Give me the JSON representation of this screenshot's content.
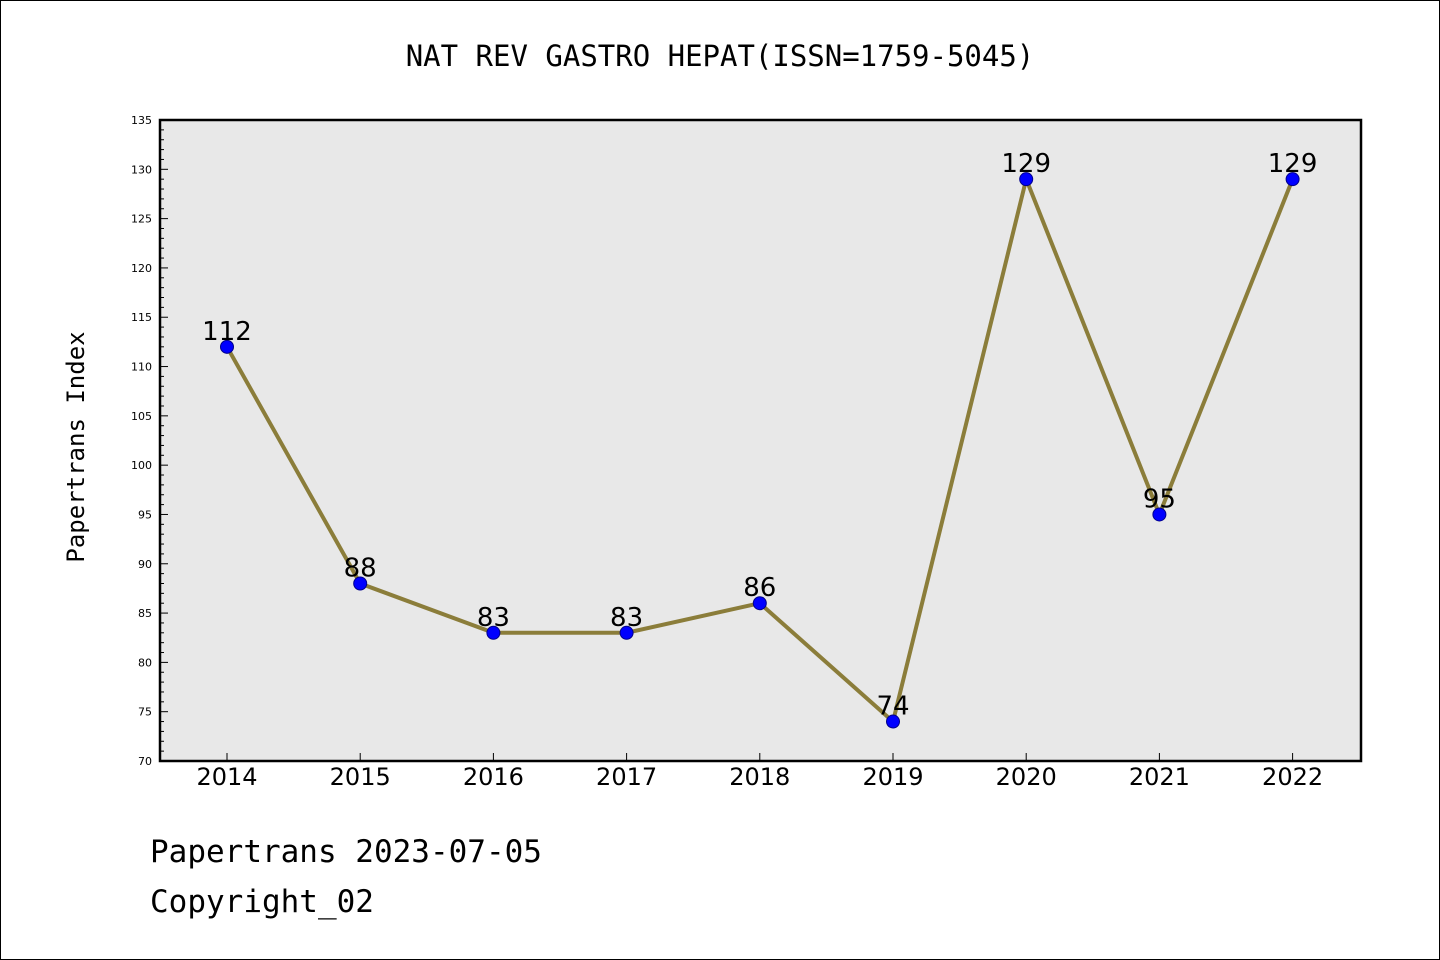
{
  "chart_data": {
    "type": "line",
    "title": "NAT REV GASTRO HEPAT(ISSN=1759-5045)",
    "xlabel": "",
    "ylabel": "Papertrans Index",
    "categories": [
      "2014",
      "2015",
      "2016",
      "2017",
      "2018",
      "2019",
      "2020",
      "2021",
      "2022"
    ],
    "series": [
      {
        "values": [
          112,
          88,
          83,
          83,
          86,
          74,
          129,
          95,
          129
        ]
      }
    ],
    "ylim": [
      70,
      135
    ],
    "yticks": [
      70,
      75,
      80,
      85,
      90,
      95,
      100,
      105,
      110,
      115,
      120,
      125,
      130,
      135
    ],
    "grid": false,
    "legend": "none",
    "colors": {
      "line": "#8b7d3a",
      "marker": "#0000ff",
      "plot_background": "#e8e8e8"
    }
  },
  "footer": {
    "line1": "Papertrans 2023-07-05",
    "line2": "Copyright_02"
  }
}
